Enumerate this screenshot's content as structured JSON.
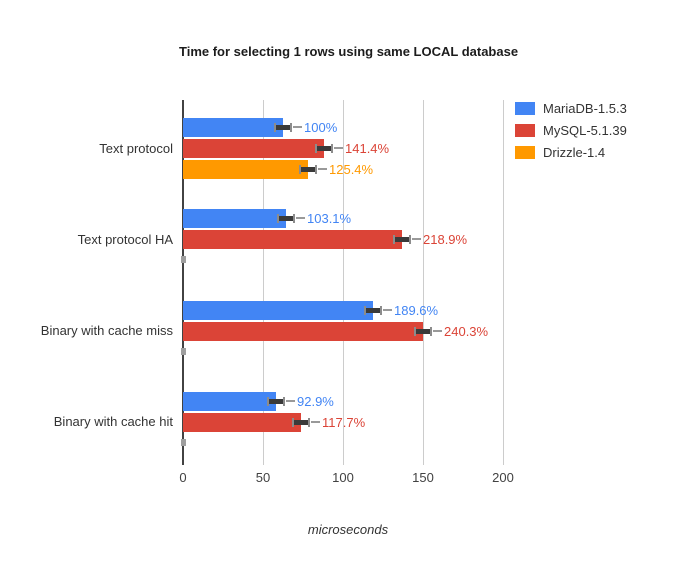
{
  "chart_data": {
    "type": "bar",
    "orientation": "horizontal",
    "title": "Time for selecting 1 rows using same LOCAL database",
    "xlabel": "microseconds",
    "xlim": [
      0,
      206
    ],
    "xticks": [
      0,
      50,
      100,
      150,
      200
    ],
    "grid": true,
    "legend_position": "right",
    "error_bars": true,
    "values_unit": "microseconds (estimated from axis; labels show percent of baseline)",
    "categories": [
      "Text protocol",
      "Text protocol HA",
      "Binary with cache miss",
      "Binary with cache hit"
    ],
    "series": [
      {
        "name": "MariaDB-1.5.3",
        "color": "#4285F4",
        "values": [
          62.5,
          64.4,
          118.5,
          58.1
        ],
        "labels": [
          "100%",
          "103.1%",
          "189.6%",
          "92.9%"
        ]
      },
      {
        "name": "MySQL-5.1.39",
        "color": "#DB4437",
        "values": [
          88.4,
          136.8,
          150.2,
          73.6
        ],
        "labels": [
          "141.4%",
          "218.9%",
          "240.3%",
          "117.7%"
        ]
      },
      {
        "name": "Drizzle-1.4",
        "color": "#FF9900",
        "values": [
          78.4,
          0,
          0,
          0
        ],
        "labels": [
          "125.4%",
          "",
          "",
          ""
        ]
      }
    ]
  }
}
